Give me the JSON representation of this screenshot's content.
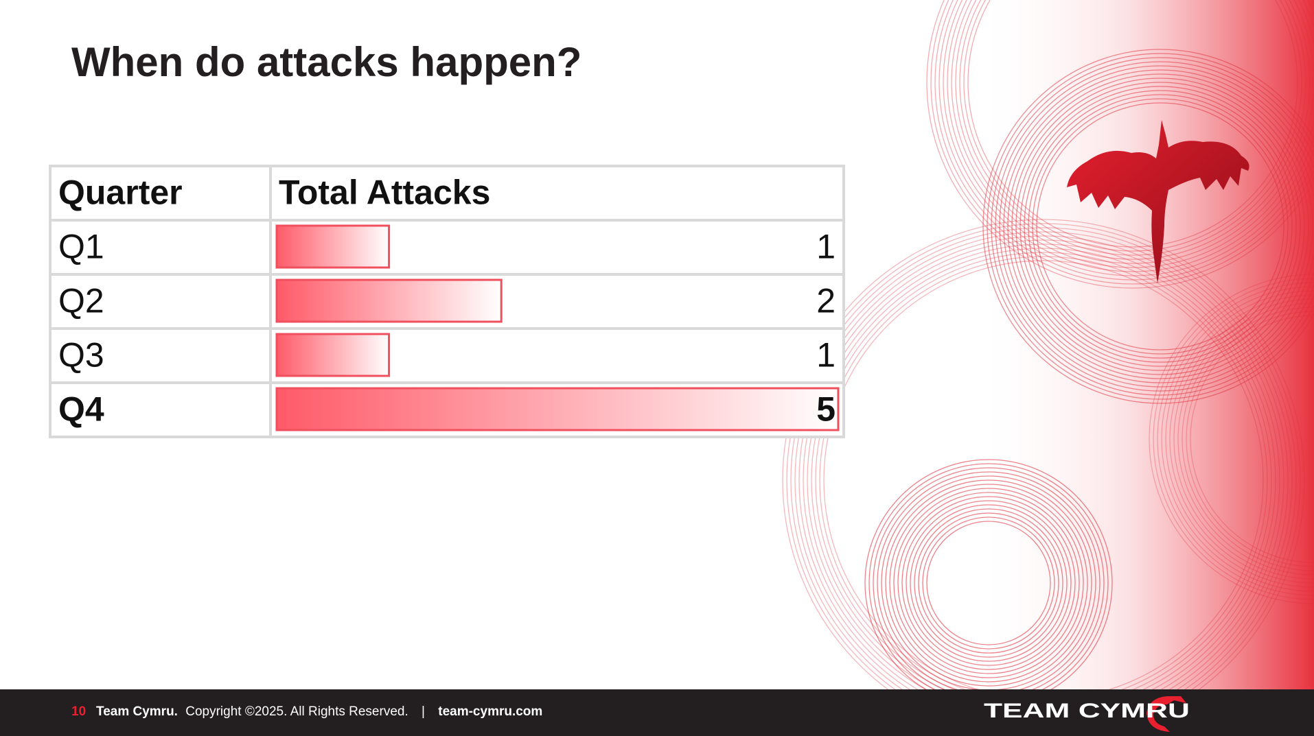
{
  "title": "When do attacks happen?",
  "table": {
    "header": [
      "Quarter",
      "Total Attacks"
    ],
    "rows": [
      [
        "Q1",
        1
      ],
      [
        "Q2",
        2
      ],
      [
        "Q3",
        1
      ],
      [
        "Q4",
        5
      ]
    ]
  },
  "footer": {
    "page": "10",
    "company": "Team Cymru.",
    "copyright": "Copyright ©2025. All Rights Reserved.",
    "separator": "|",
    "website": "team-cymru.com"
  },
  "logo": "TEAM CYMRU"
}
